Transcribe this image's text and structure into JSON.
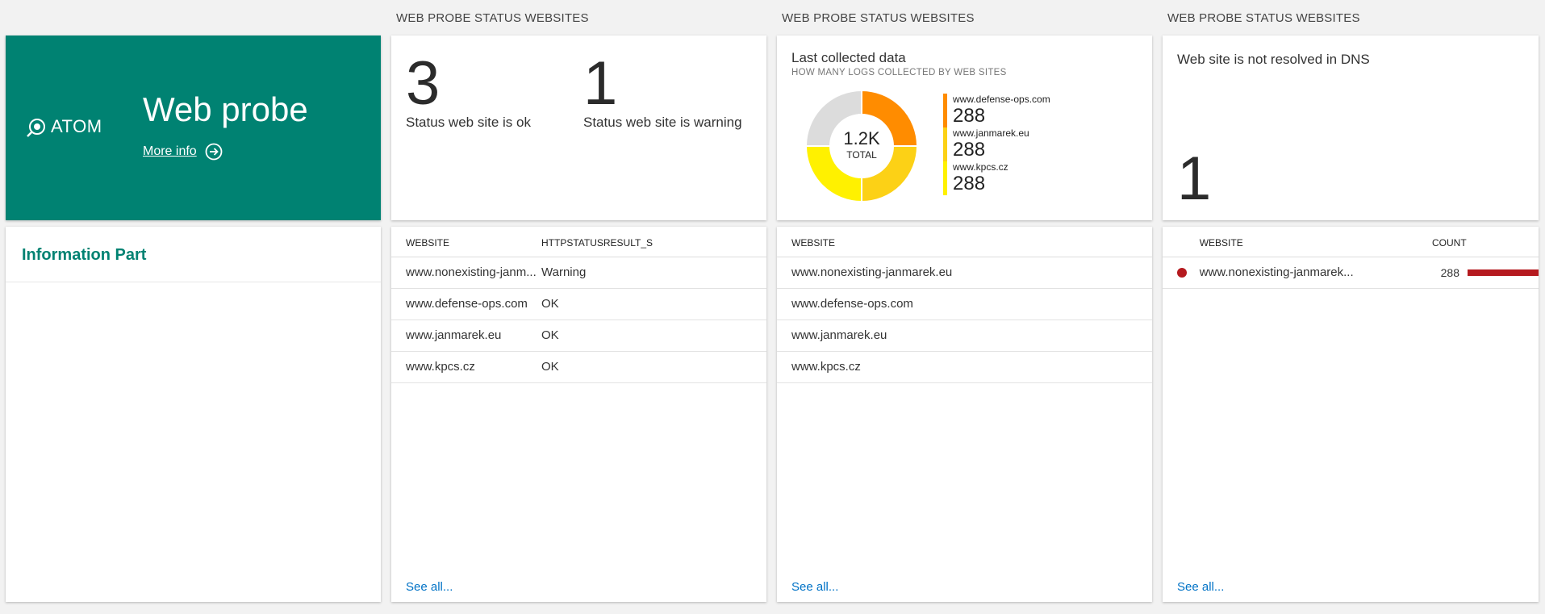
{
  "columns": {
    "col2_title": "WEB PROBE STATUS WEBSITES",
    "col3_title": "WEB PROBE STATUS WEBSITES",
    "col4_title": "WEB PROBE STATUS WEBSITES"
  },
  "hero": {
    "logo_text": "ATOM",
    "title": "Web probe",
    "more_info": "More info"
  },
  "info_part": {
    "title": "Information Part"
  },
  "status_tile": {
    "ok_count": "3",
    "ok_label": "Status web site is ok",
    "warning_count": "1",
    "warning_label": "Status web site is warning"
  },
  "logs_tile": {
    "title": "Last collected data",
    "subtitle": "HOW MANY LOGS COLLECTED BY WEB SITES",
    "total_value": "1.2K",
    "total_label": "TOTAL"
  },
  "chart_data": {
    "type": "pie",
    "categories": [
      "www.defense-ops.com",
      "www.janmarek.eu",
      "www.kpcs.cz",
      "www.nonexisting-janmarek.eu"
    ],
    "values": [
      288,
      288,
      288,
      288
    ],
    "display_values": [
      "288",
      "288",
      "288"
    ],
    "colors": [
      "#ff8c00",
      "#fcd116",
      "#fff100",
      "#dcdcdc"
    ],
    "center_label": "1.2K",
    "center_sublabel": "TOTAL",
    "legend_placement": "right"
  },
  "dns_tile": {
    "title": "Web site is not resolved in DNS",
    "count": "1"
  },
  "status_table": {
    "headers": [
      "WEBSITE",
      "HTTPSTATUSRESULT_S"
    ],
    "rows": [
      [
        "www.nonexisting-janm...",
        "Warning"
      ],
      [
        "www.defense-ops.com",
        "OK"
      ],
      [
        "www.janmarek.eu",
        "OK"
      ],
      [
        "www.kpcs.cz",
        "OK"
      ]
    ],
    "see_all": "See all..."
  },
  "logs_table": {
    "headers": [
      "WEBSITE"
    ],
    "rows": [
      [
        "www.nonexisting-janmarek.eu"
      ],
      [
        "www.defense-ops.com"
      ],
      [
        "www.janmarek.eu"
      ],
      [
        "www.kpcs.cz"
      ]
    ],
    "see_all": "See all..."
  },
  "dns_table": {
    "headers": [
      "WEBSITE",
      "COUNT"
    ],
    "rows": [
      {
        "website": "www.nonexisting-janmarek...",
        "count": "288",
        "bar_fraction": 1.0,
        "dot_color": "#b51a1f"
      }
    ],
    "see_all": "See all..."
  },
  "icons": {
    "logo": "atom-logo-icon",
    "more_info": "arrow-circle-right-icon",
    "status_dot": "status-dot-icon",
    "count_bar": "count-bar"
  },
  "accent_color": "#008272",
  "link_color": "#0072c6"
}
